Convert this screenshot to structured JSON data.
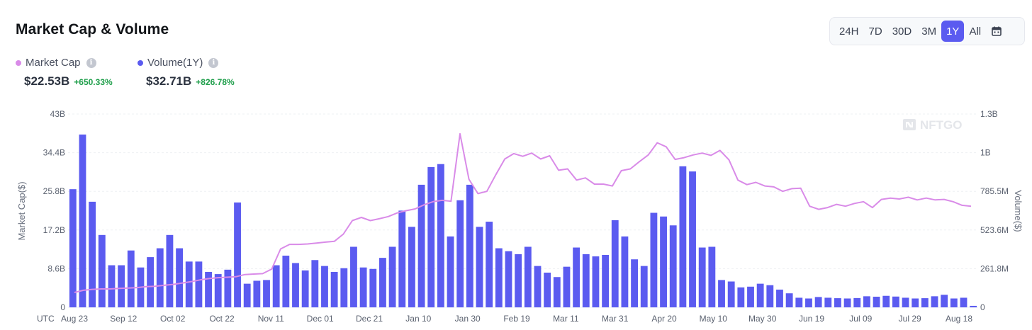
{
  "header": {
    "title": "Market Cap & Volume"
  },
  "time_ranges": [
    {
      "label": "24H",
      "active": false
    },
    {
      "label": "7D",
      "active": false
    },
    {
      "label": "30D",
      "active": false
    },
    {
      "label": "3M",
      "active": false
    },
    {
      "label": "1Y",
      "active": true
    },
    {
      "label": "All",
      "active": false
    }
  ],
  "calendar_icon": "calendar-icon",
  "legend": {
    "market_cap": {
      "label": "Market Cap",
      "value": "$22.53B",
      "change": "+650.33%",
      "color": "#d98be8"
    },
    "volume": {
      "label": "Volume(1Y)",
      "value": "$32.71B",
      "change": "+826.78%",
      "color": "#5b5bf0"
    }
  },
  "watermark": "NFTGO",
  "colors": {
    "accent": "#5b5bf0",
    "line": "#d98be8",
    "positive": "#1e9e4a"
  },
  "chart_data": {
    "type": "bar",
    "timezone_label": "UTC",
    "x_tick_labels": [
      "Aug 23",
      "Sep 12",
      "Oct 02",
      "Oct 22",
      "Nov 11",
      "Dec 01",
      "Dec 21",
      "Jan 10",
      "Jan 30",
      "Feb 19",
      "Mar 11",
      "Mar 31",
      "Apr 20",
      "May 10",
      "May 30",
      "Jun 19",
      "Jul 09",
      "Jul 29",
      "Aug 18"
    ],
    "left_axis": {
      "label": "Market Cap($)",
      "ticks": [
        "0",
        "8.6B",
        "17.2B",
        "25.8B",
        "34.4B",
        "43B"
      ],
      "range": [
        0,
        43
      ]
    },
    "right_axis": {
      "label": "Volume($)",
      "ticks": [
        "0",
        "261.8M",
        "523.6M",
        "785.5M",
        "1B",
        "1.3B"
      ],
      "range": [
        0,
        1309
      ]
    },
    "grid": true,
    "legend_position": "top-left",
    "series": [
      {
        "name": "Volume(1Y)",
        "type": "bar",
        "axis": "right",
        "unit": "M",
        "values": [
          800,
          1170,
          715,
          490,
          285,
          285,
          385,
          270,
          340,
          400,
          490,
          400,
          310,
          310,
          240,
          225,
          255,
          710,
          160,
          180,
          185,
          285,
          350,
          300,
          250,
          320,
          280,
          240,
          265,
          410,
          270,
          260,
          335,
          410,
          655,
          545,
          830,
          950,
          970,
          480,
          725,
          830,
          545,
          580,
          400,
          380,
          360,
          410,
          280,
          235,
          205,
          275,
          405,
          360,
          345,
          355,
          590,
          480,
          325,
          280,
          640,
          615,
          555,
          955,
          920,
          405,
          410,
          185,
          175,
          135,
          140,
          160,
          150,
          120,
          95,
          65,
          60,
          70,
          65,
          62,
          60,
          63,
          75,
          72,
          78,
          73,
          65,
          60,
          62,
          75,
          85,
          60,
          65,
          10
        ]
      },
      {
        "name": "Market Cap",
        "type": "line",
        "axis": "left",
        "unit": "B",
        "values": [
          3.3,
          3.8,
          4.0,
          4.1,
          4.1,
          4.2,
          4.3,
          4.4,
          4.6,
          4.7,
          4.9,
          5.1,
          5.4,
          5.7,
          6.1,
          6.4,
          6.6,
          6.7,
          6.8,
          7.3,
          7.4,
          7.5,
          8.5,
          13.0,
          14.0,
          14.0,
          14.1,
          14.3,
          14.5,
          14.7,
          16.3,
          19.3,
          20.0,
          19.3,
          19.7,
          20.2,
          21.0,
          21.5,
          21.9,
          22.8,
          23.5,
          23.8,
          23.6,
          38.6,
          28.5,
          25.3,
          25.8,
          29.5,
          33.0,
          34.2,
          33.6,
          34.3,
          33.0,
          33.7,
          30.5,
          30.8,
          28.3,
          28.8,
          27.4,
          27.4,
          27.0,
          30.4,
          30.8,
          32.4,
          33.9,
          36.6,
          35.7,
          32.9,
          33.3,
          33.9,
          34.3,
          33.8,
          34.9,
          32.8,
          28.3,
          27.3,
          27.8,
          27.0,
          26.8,
          25.8,
          26.4,
          26.5,
          22.5,
          21.8,
          22.2,
          22.9,
          22.5,
          23.1,
          23.5,
          22.2,
          24.0,
          24.3,
          24.1,
          24.5,
          23.9,
          24.3,
          23.9,
          24.0,
          23.5,
          22.7,
          22.5
        ]
      }
    ]
  }
}
